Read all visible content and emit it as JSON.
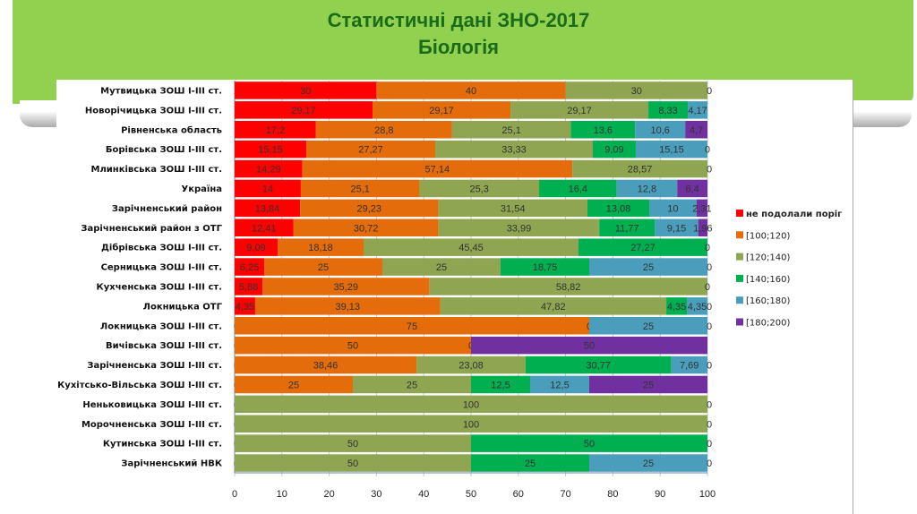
{
  "title_line1": "Статистичні дані  ЗНО-2017",
  "title_line2": "Біологія",
  "chart_data": {
    "type": "bar",
    "orientation": "horizontal-stacked-100",
    "xlim": [
      0,
      100
    ],
    "xticks": [
      0,
      10,
      20,
      30,
      40,
      50,
      60,
      70,
      80,
      90,
      100
    ],
    "legend_position": "right",
    "grid": true,
    "colors": [
      "#ff0000",
      "#e46c0a",
      "#8fa552",
      "#00b050",
      "#4a9ebb",
      "#7030a0"
    ],
    "series_names": [
      "не подолали поріг",
      "[100;120)",
      "[120;140)",
      "[140;160)",
      "[160;180)",
      "[180;200)"
    ],
    "categories": [
      "Мутвицька  ЗОШ І-ІІІ ст.",
      "Новорічицька  ЗОШ І-ІІІ ст.",
      "Рівненська  область",
      "Борівська  ЗОШ І-ІІІ ст.",
      "Млинківська  ЗОШ І-ІІІ ст.",
      "Україна",
      "Зарічненський  район",
      "Зарічненський  район з ОТГ",
      "Дібрівська  ЗОШ І-ІІІ ст.",
      "Серницька  ЗОШ І-ІІІ ст.",
      "Кухченська  ЗОШ І-ІІІ ст.",
      "Локницька  ОТГ",
      "Локницька  ЗОШ І-ІІІ ст.",
      "Вичівська  ЗОШ І-ІІІ ст.",
      "Зарічненська  ЗОШ І-ІІІ ст.",
      "Кухітсько-Вільська  ЗОШ І-ІІІ ст.",
      "Неньковицька  ЗОШ І-ІІІ ст.",
      "Морочненська  ЗОШ І-ІІІ ст.",
      "Кутинська  ЗОШ І-ІІІ ст.",
      "Зарічненський  НВК"
    ],
    "values": [
      [
        30,
        40,
        30,
        null,
        null,
        0
      ],
      [
        29.17,
        29.17,
        29.17,
        8.33,
        4.17,
        null
      ],
      [
        17.2,
        28.8,
        25.1,
        13.6,
        10.6,
        4.7
      ],
      [
        15.15,
        27.27,
        33.33,
        9.09,
        15.15,
        0
      ],
      [
        14.29,
        57.14,
        28.57,
        null,
        null,
        0
      ],
      [
        14,
        25.1,
        25.3,
        16.4,
        12.8,
        6.4
      ],
      [
        13.84,
        29.23,
        31.54,
        13.08,
        10,
        2.31
      ],
      [
        12.41,
        30.72,
        33.99,
        11.77,
        9.15,
        1.96
      ],
      [
        9.09,
        18.18,
        45.45,
        27.27,
        null,
        0
      ],
      [
        6.25,
        25,
        25,
        18.75,
        25,
        0
      ],
      [
        5.88,
        35.29,
        58.82,
        null,
        null,
        0
      ],
      [
        4.35,
        39.13,
        47.82,
        4.35,
        4.35,
        0
      ],
      [
        0,
        75,
        0,
        null,
        25,
        0
      ],
      [
        0,
        50,
        0,
        null,
        null,
        50
      ],
      [
        0,
        38.46,
        23.08,
        30.77,
        7.69,
        0
      ],
      [
        0,
        25,
        25,
        12.5,
        12.5,
        25
      ],
      [
        0,
        null,
        100,
        null,
        null,
        0
      ],
      [
        0,
        null,
        100,
        null,
        null,
        0
      ],
      [
        0,
        null,
        50,
        50,
        null,
        0
      ],
      [
        0,
        null,
        50,
        25,
        25,
        0
      ]
    ]
  }
}
